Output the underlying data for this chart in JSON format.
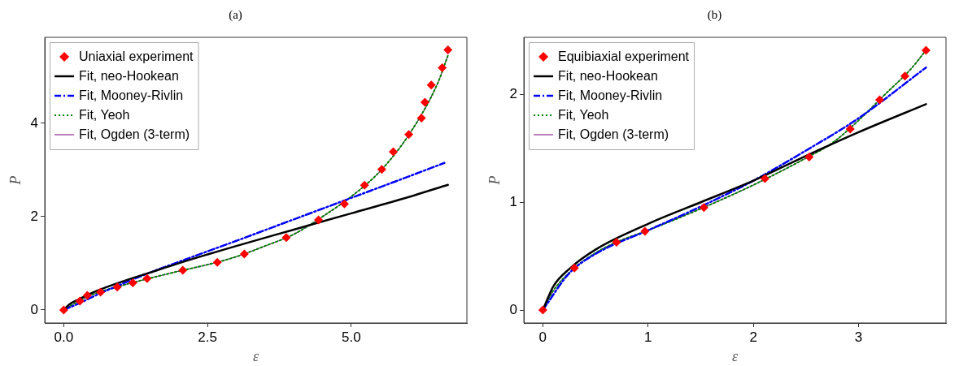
{
  "chart_data": [
    {
      "type": "line",
      "title": "(a)",
      "xlabel": "ε",
      "ylabel": "P",
      "xlim": [
        -0.33,
        7.01
      ],
      "ylim": [
        -0.28,
        5.84
      ],
      "xticks": [
        {
          "value": 0,
          "label": "0.0"
        },
        {
          "value": 2.5,
          "label": "2.5"
        },
        {
          "value": 5,
          "label": "5.0"
        }
      ],
      "yticks": [
        0,
        2,
        4
      ],
      "legend": "top left",
      "series": [
        {
          "name": "Uniaxial experiment",
          "type": "scatter",
          "marker": "diamond",
          "color": "#ff0000",
          "x": [
            0,
            0.28,
            0.41,
            0.64,
            0.93,
            1.2,
            1.45,
            2.07,
            2.67,
            3.14,
            3.87,
            4.43,
            4.88,
            5.23,
            5.53,
            5.73,
            6.0,
            6.22,
            6.28,
            6.39,
            6.58,
            6.68
          ],
          "values": [
            0,
            0.19,
            0.31,
            0.38,
            0.49,
            0.58,
            0.67,
            0.85,
            1.02,
            1.2,
            1.55,
            1.93,
            2.27,
            2.67,
            3.01,
            3.39,
            3.76,
            4.11,
            4.45,
            4.82,
            5.19,
            5.57
          ]
        },
        {
          "name": "Fit, neo-Hookean",
          "type": "line",
          "marker": "none",
          "line_style": "solid",
          "color": "#000000",
          "x": [
            0,
            0.1,
            0.25,
            0.5,
            1,
            1.5,
            2,
            3,
            4,
            5,
            6,
            6.68
          ],
          "values": [
            0,
            0.12,
            0.22,
            0.37,
            0.6,
            0.8,
            1.0,
            1.37,
            1.72,
            2.07,
            2.42,
            2.68
          ]
        },
        {
          "name": "Fit, Mooney-Rivlin",
          "type": "line",
          "marker": "none",
          "line_style": "dashed",
          "color": "#0000ff",
          "x": [
            0,
            0.25,
            0.5,
            1,
            1.5,
            2,
            3,
            4,
            5,
            6,
            6.62
          ],
          "values": [
            0,
            0.13,
            0.28,
            0.55,
            0.8,
            1.03,
            1.48,
            1.94,
            2.4,
            2.86,
            3.15
          ]
        },
        {
          "name": "Fit, Yeoh",
          "type": "line",
          "marker": "none",
          "line_style": "dotted",
          "color": "#008000",
          "x": [
            0,
            0.25,
            0.5,
            1,
            1.5,
            2,
            2.5,
            3,
            3.5,
            4,
            4.5,
            5,
            5.5,
            6,
            6.5,
            6.68
          ],
          "values": [
            0,
            0.18,
            0.33,
            0.52,
            0.68,
            0.83,
            0.97,
            1.14,
            1.37,
            1.62,
            2.0,
            2.43,
            2.97,
            3.75,
            4.85,
            5.45
          ]
        },
        {
          "name": "Fit, Ogden (3-term)",
          "type": "line",
          "marker": "none",
          "line_style": "solid",
          "color": "#800080",
          "x": [
            0,
            0.25,
            0.5,
            1,
            1.5,
            2,
            2.5,
            3,
            3.5,
            4,
            4.5,
            5,
            5.5,
            6,
            6.5,
            6.68
          ],
          "values": [
            0,
            0.18,
            0.33,
            0.52,
            0.68,
            0.83,
            0.97,
            1.14,
            1.37,
            1.62,
            2.0,
            2.43,
            2.97,
            3.75,
            4.85,
            5.45
          ]
        }
      ]
    },
    {
      "type": "line",
      "title": "(b)",
      "xlabel": "ε",
      "ylabel": "P",
      "xlim": [
        -0.18,
        3.83
      ],
      "ylim": [
        -0.12,
        2.53
      ],
      "xticks": [
        0,
        1,
        2,
        3
      ],
      "yticks": [
        0,
        1,
        2
      ],
      "legend": "top left",
      "series": [
        {
          "name": "Equibiaxial experiment",
          "type": "scatter",
          "marker": "diamond",
          "color": "#ff0000",
          "x": [
            0,
            0.3,
            0.7,
            0.97,
            1.53,
            2.11,
            2.53,
            2.92,
            3.2,
            3.44,
            3.64
          ],
          "values": [
            0,
            0.39,
            0.63,
            0.73,
            0.95,
            1.22,
            1.42,
            1.68,
            1.95,
            2.17,
            2.41
          ]
        },
        {
          "name": "Fit, neo-Hookean",
          "type": "line",
          "marker": "none",
          "line_style": "solid",
          "color": "#000000",
          "x": [
            0,
            0.1,
            0.25,
            0.5,
            1,
            1.5,
            2,
            2.5,
            3,
            3.64
          ],
          "values": [
            0,
            0.22,
            0.38,
            0.56,
            0.8,
            1.0,
            1.2,
            1.43,
            1.65,
            1.91
          ]
        },
        {
          "name": "Fit, Mooney-Rivlin",
          "type": "line",
          "marker": "none",
          "line_style": "dashed",
          "color": "#0000ff",
          "x": [
            0,
            0.25,
            0.5,
            1,
            1.5,
            2,
            2.5,
            3,
            3.64
          ],
          "values": [
            0,
            0.34,
            0.52,
            0.74,
            0.96,
            1.2,
            1.48,
            1.78,
            2.25
          ]
        },
        {
          "name": "Fit, Yeoh",
          "type": "line",
          "marker": "none",
          "line_style": "dotted",
          "color": "#008000",
          "x": [
            0,
            0.1,
            0.3,
            0.5,
            0.7,
            1,
            1.5,
            2,
            2.5,
            2.75,
            3,
            3.25,
            3.5,
            3.64
          ],
          "values": [
            0,
            0.18,
            0.39,
            0.53,
            0.63,
            0.74,
            0.94,
            1.16,
            1.41,
            1.55,
            1.76,
            2.0,
            2.24,
            2.41
          ]
        },
        {
          "name": "Fit, Ogden (3-term)",
          "type": "line",
          "marker": "none",
          "line_style": "solid",
          "color": "#800080",
          "x": [
            0,
            0.1,
            0.3,
            0.5,
            0.7,
            1,
            1.5,
            2,
            2.5,
            2.75,
            3,
            3.25,
            3.5,
            3.64
          ],
          "values": [
            0,
            0.18,
            0.39,
            0.53,
            0.63,
            0.74,
            0.94,
            1.16,
            1.41,
            1.55,
            1.76,
            2.0,
            2.24,
            2.41
          ]
        }
      ]
    }
  ]
}
